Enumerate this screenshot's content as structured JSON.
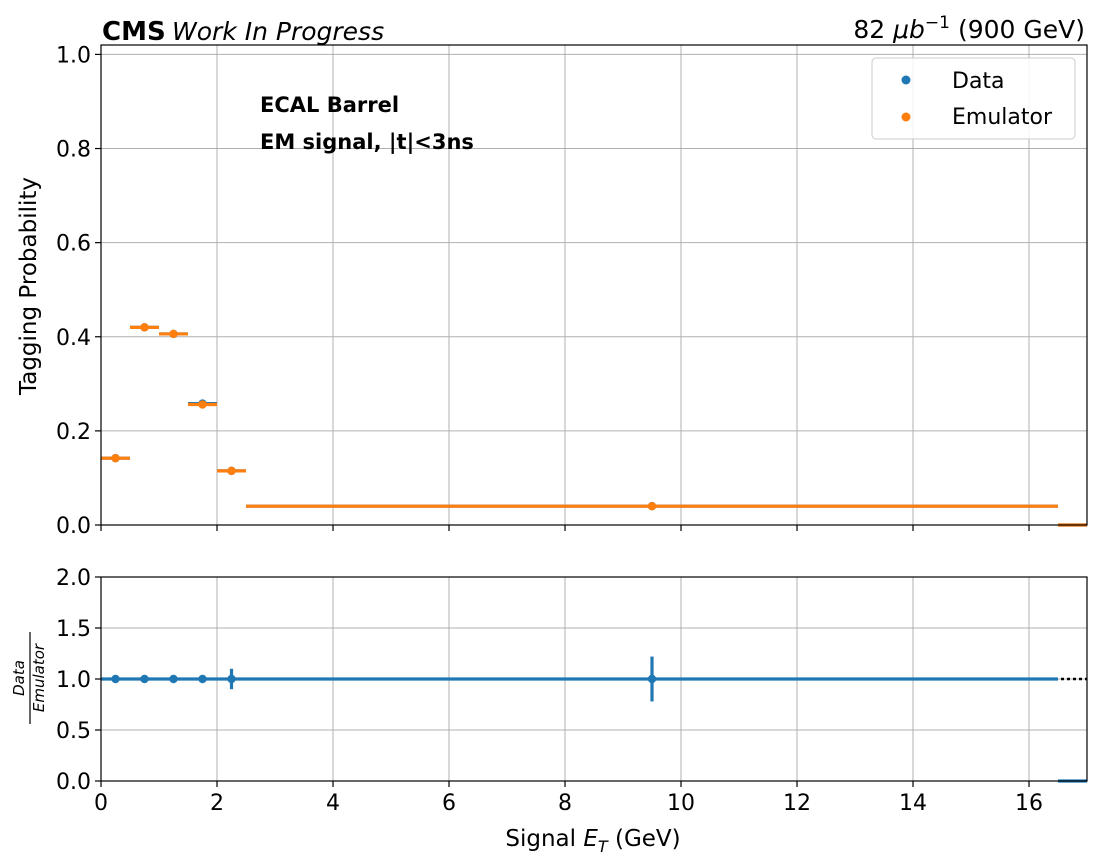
{
  "header": {
    "experiment": "CMS",
    "status": "Work In Progress",
    "lumi_value": "82",
    "lumi_unit_base": "μb",
    "lumi_unit_exp": "−1",
    "energy": "(900 GeV)"
  },
  "annotations": [
    "ECAL Barrel",
    "EM signal, |t|<3ns"
  ],
  "colors": {
    "data": "#1f77b4",
    "emulator": "#ff7f0e",
    "grid": "#b0b0b0"
  },
  "chart_data": [
    {
      "type": "scatter",
      "panel": "main",
      "ylabel": "Tagging Probability",
      "xlim": [
        0,
        17
      ],
      "ylim": [
        0,
        1.02
      ],
      "xticks": [
        0,
        2,
        4,
        6,
        8,
        10,
        12,
        14,
        16
      ],
      "yticks": [
        0.0,
        0.2,
        0.4,
        0.6,
        0.8,
        1.0
      ],
      "ytick_labels": [
        "0.0",
        "0.2",
        "0.4",
        "0.6",
        "0.8",
        "1.0"
      ],
      "grid": true,
      "legend": {
        "placement": "top-right",
        "entries": [
          "Data",
          "Emulator"
        ]
      },
      "series": [
        {
          "name": "Data",
          "points": [
            {
              "x": 0.25,
              "y": 0.142,
              "xlo": 0,
              "xhi": 0.5
            },
            {
              "x": 0.75,
              "y": 0.42,
              "xlo": 0.5,
              "xhi": 1.0
            },
            {
              "x": 1.25,
              "y": 0.406,
              "xlo": 1.0,
              "xhi": 1.5
            },
            {
              "x": 1.75,
              "y": 0.258,
              "xlo": 1.5,
              "xhi": 2.0
            },
            {
              "x": 2.25,
              "y": 0.115,
              "xlo": 2.0,
              "xhi": 2.5
            },
            {
              "x": 9.5,
              "y": 0.04,
              "xlo": 2.5,
              "xhi": 16.5
            },
            {
              "x": 16.75,
              "y": 0.0,
              "xlo": 16.5,
              "xhi": 17.0
            }
          ]
        },
        {
          "name": "Emulator",
          "points": [
            {
              "x": 0.25,
              "y": 0.142,
              "xlo": 0,
              "xhi": 0.5
            },
            {
              "x": 0.75,
              "y": 0.42,
              "xlo": 0.5,
              "xhi": 1.0
            },
            {
              "x": 1.25,
              "y": 0.406,
              "xlo": 1.0,
              "xhi": 1.5
            },
            {
              "x": 1.75,
              "y": 0.256,
              "xlo": 1.5,
              "xhi": 2.0
            },
            {
              "x": 2.25,
              "y": 0.115,
              "xlo": 2.0,
              "xhi": 2.5
            },
            {
              "x": 9.5,
              "y": 0.04,
              "xlo": 2.5,
              "xhi": 16.5
            },
            {
              "x": 16.75,
              "y": 0.0,
              "xlo": 16.5,
              "xhi": 17.0
            }
          ]
        }
      ]
    },
    {
      "type": "scatter",
      "panel": "ratio",
      "xlabel_base": "Signal ",
      "xlabel_var": "E",
      "xlabel_sub": "T",
      "xlabel_unit": " (GeV)",
      "ylabel_num": "Data",
      "ylabel_den": "Emulator",
      "xlim": [
        0,
        17
      ],
      "ylim": [
        0,
        2.0
      ],
      "xticks": [
        0,
        2,
        4,
        6,
        8,
        10,
        12,
        14,
        16
      ],
      "yticks": [
        0.0,
        0.5,
        1.0,
        1.5,
        2.0
      ],
      "ytick_labels": [
        "0.0",
        "0.5",
        "1.0",
        "1.5",
        "2.0"
      ],
      "reference_line": 1.0,
      "grid": true,
      "series": [
        {
          "name": "Data/Emulator",
          "points": [
            {
              "x": 0.25,
              "y": 1.0,
              "xlo": 0,
              "xhi": 0.5,
              "yerr": 0.0
            },
            {
              "x": 0.75,
              "y": 1.0,
              "xlo": 0.5,
              "xhi": 1.0,
              "yerr": 0.0
            },
            {
              "x": 1.25,
              "y": 1.0,
              "xlo": 1.0,
              "xhi": 1.5,
              "yerr": 0.0
            },
            {
              "x": 1.75,
              "y": 1.0,
              "xlo": 1.5,
              "xhi": 2.0,
              "yerr": 0.0
            },
            {
              "x": 2.25,
              "y": 1.0,
              "xlo": 2.0,
              "xhi": 2.5,
              "yerr": 0.1
            },
            {
              "x": 9.5,
              "y": 1.0,
              "xlo": 2.5,
              "xhi": 16.5,
              "yerr": 0.22
            },
            {
              "x": 16.75,
              "y": 0.0,
              "xlo": 16.5,
              "xhi": 17.0,
              "yerr": 0.0
            }
          ]
        }
      ]
    }
  ]
}
